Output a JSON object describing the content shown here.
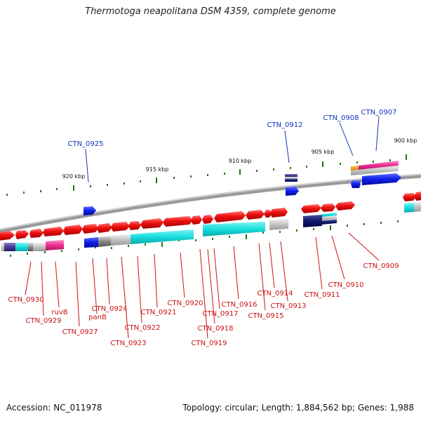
{
  "title": "Thermotoga neapolitana DSM 4359, complete genome",
  "accession": "Accession: NC_011978",
  "topology": "Topology: circular; Length: 1,884,562 bp; Genes: 1,988",
  "colors": {
    "forward_gene": "#ee1111",
    "reverse_gene": "#1122ee",
    "cog_cyan": "#19dede",
    "cog_pink": "#ee2d93",
    "label_lower": "#cc1111",
    "label_upper": "#1133bb",
    "tick": "#1a7a1a"
  },
  "scale_labels": [
    "920 kbp",
    "915 kbp",
    "910 kbp",
    "905 kbp",
    "900 kbp"
  ],
  "upper_labels": [
    "CTN_0925",
    "CTN_0912",
    "CTN_0908",
    "CTN_0907"
  ],
  "lower_labels": [
    "CTN_0930",
    "CTN_0929",
    "ruvB",
    "CTN_0927",
    "panB",
    "CTN_0924",
    "CTN_0923",
    "CTN_0922",
    "CTN_0921",
    "CTN_0920",
    "CTN_0919",
    "CTN_0918",
    "CTN_0917",
    "CTN_0916",
    "CTN_0915",
    "CTN_0914",
    "CTN_0913",
    "CTN_0911",
    "CTN_0910",
    "CTN_0909"
  ]
}
